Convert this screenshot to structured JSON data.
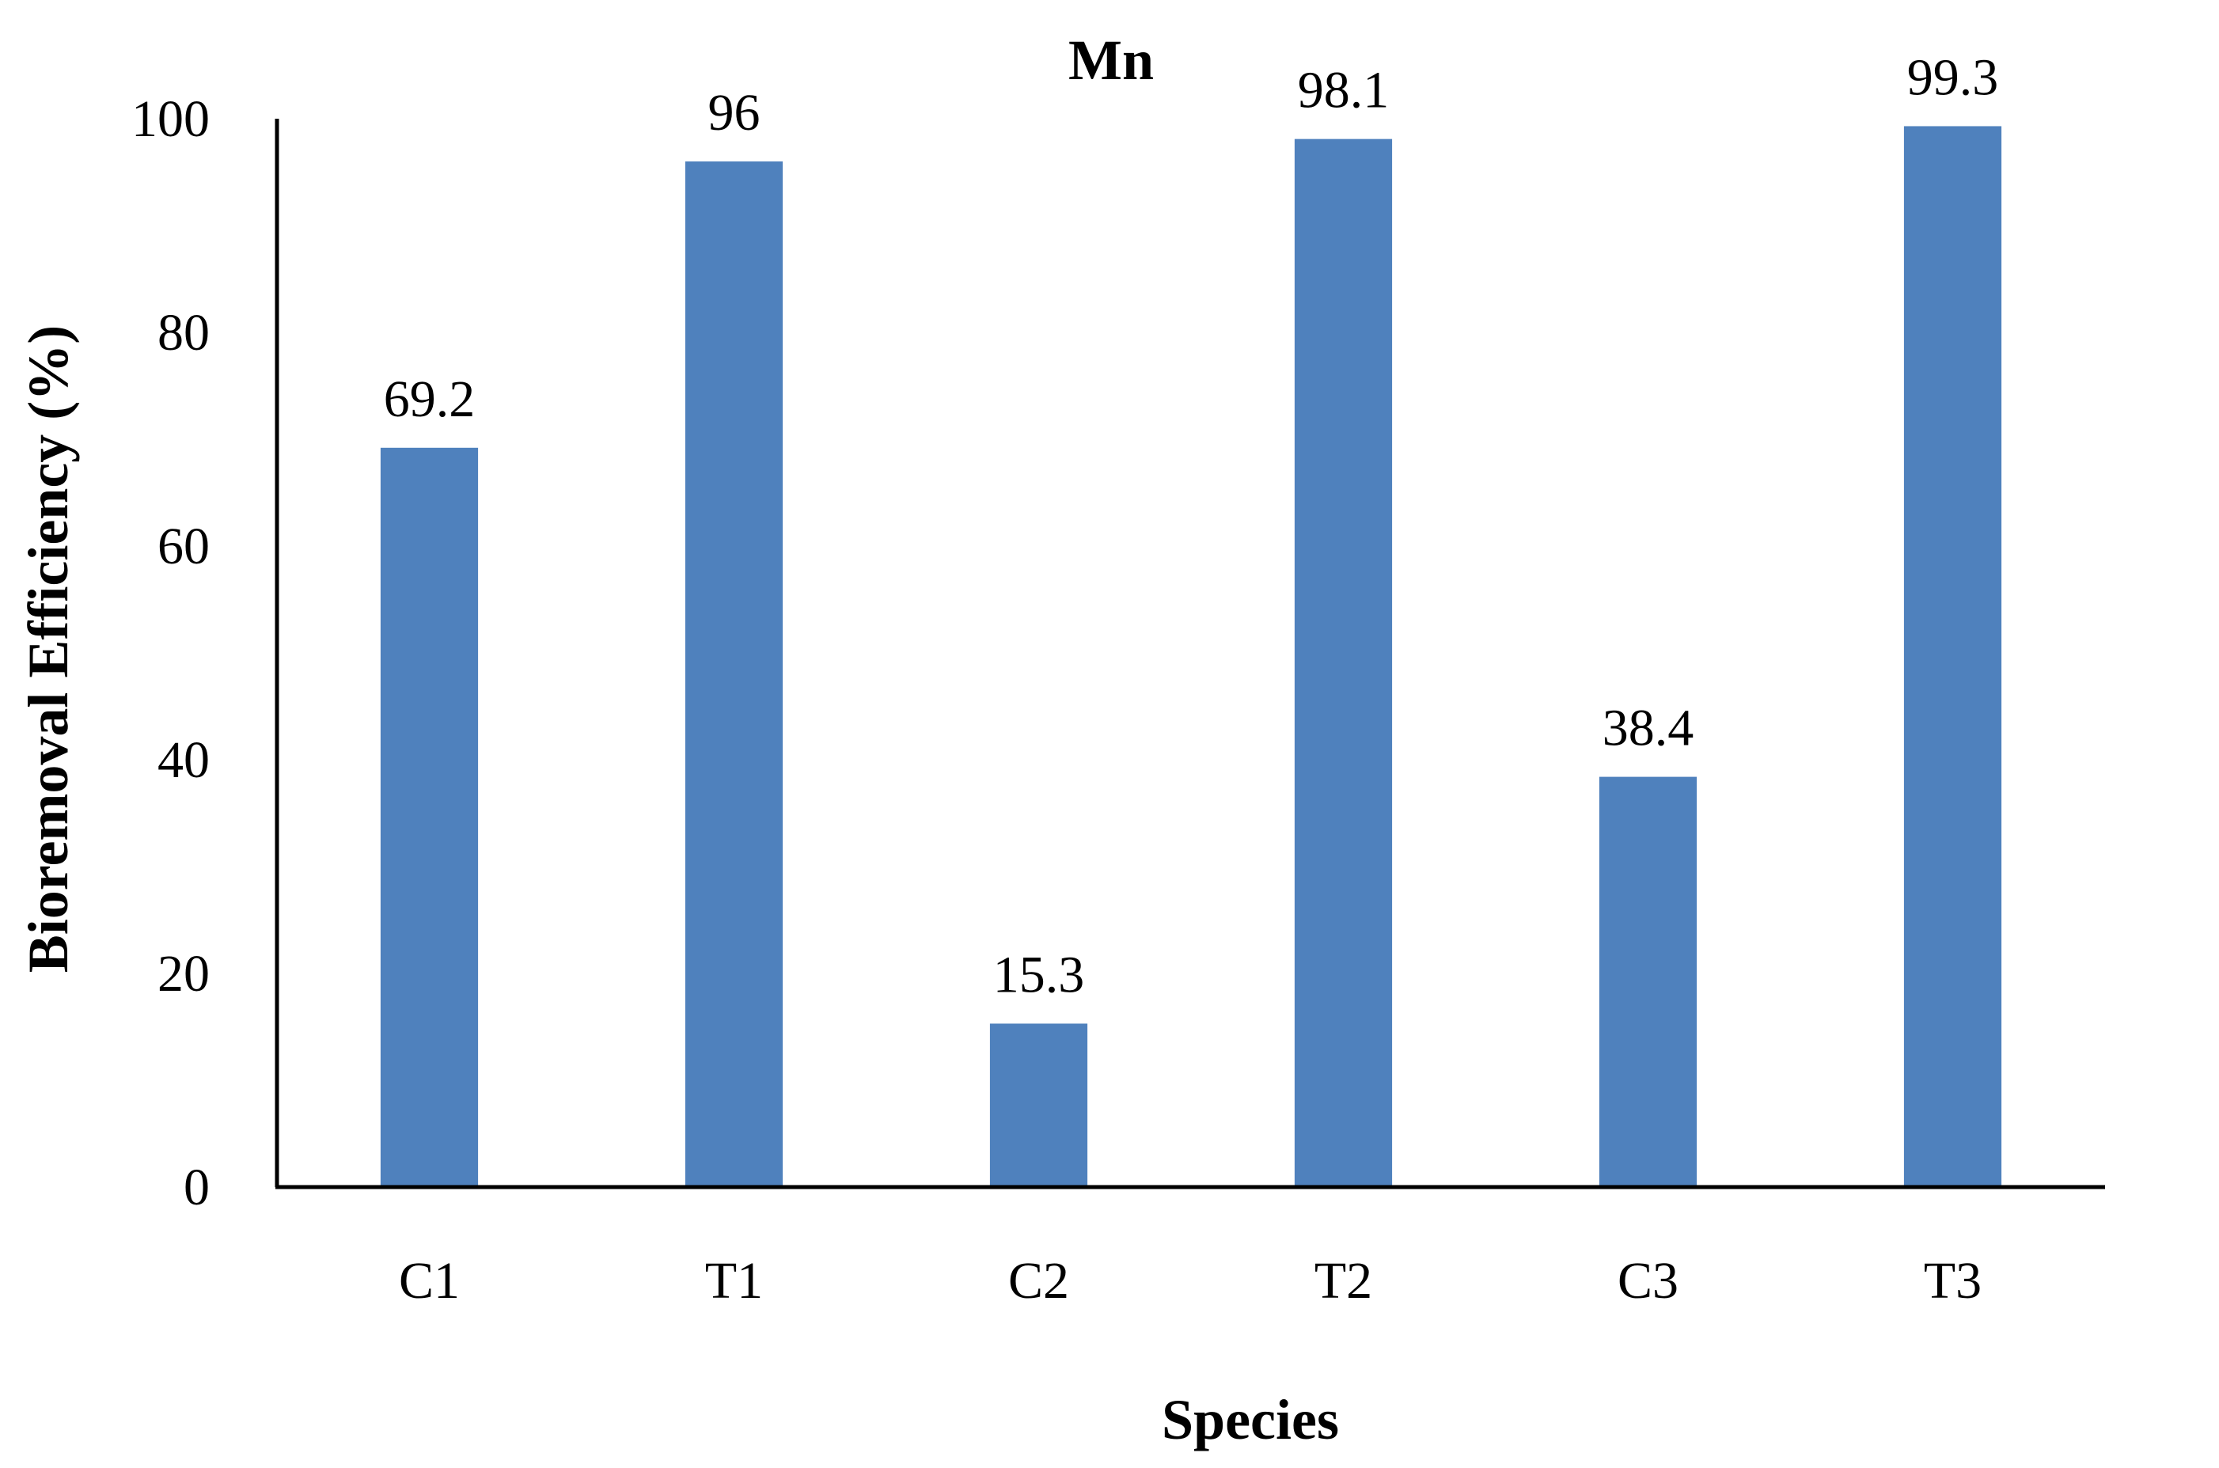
{
  "chart_data": {
    "type": "bar",
    "title": "Mn",
    "xlabel": "Species",
    "ylabel": "Bioremoval Efficiency (%)",
    "categories": [
      "C1",
      "T1",
      "C2",
      "T2",
      "C3",
      "T3"
    ],
    "values": [
      69.2,
      96,
      15.3,
      98.1,
      38.4,
      99.3
    ],
    "data_labels": [
      "69.2",
      "96",
      "15.3",
      "98.1",
      "38.4",
      "99.3"
    ],
    "ylim": [
      0,
      100
    ],
    "yticks": [
      0,
      20,
      40,
      60,
      80,
      100
    ],
    "ytick_labels": [
      "0",
      "20",
      "40",
      "60",
      "80",
      "100"
    ],
    "grid": false,
    "legend": "none",
    "bar_color": "#4F81BD"
  }
}
